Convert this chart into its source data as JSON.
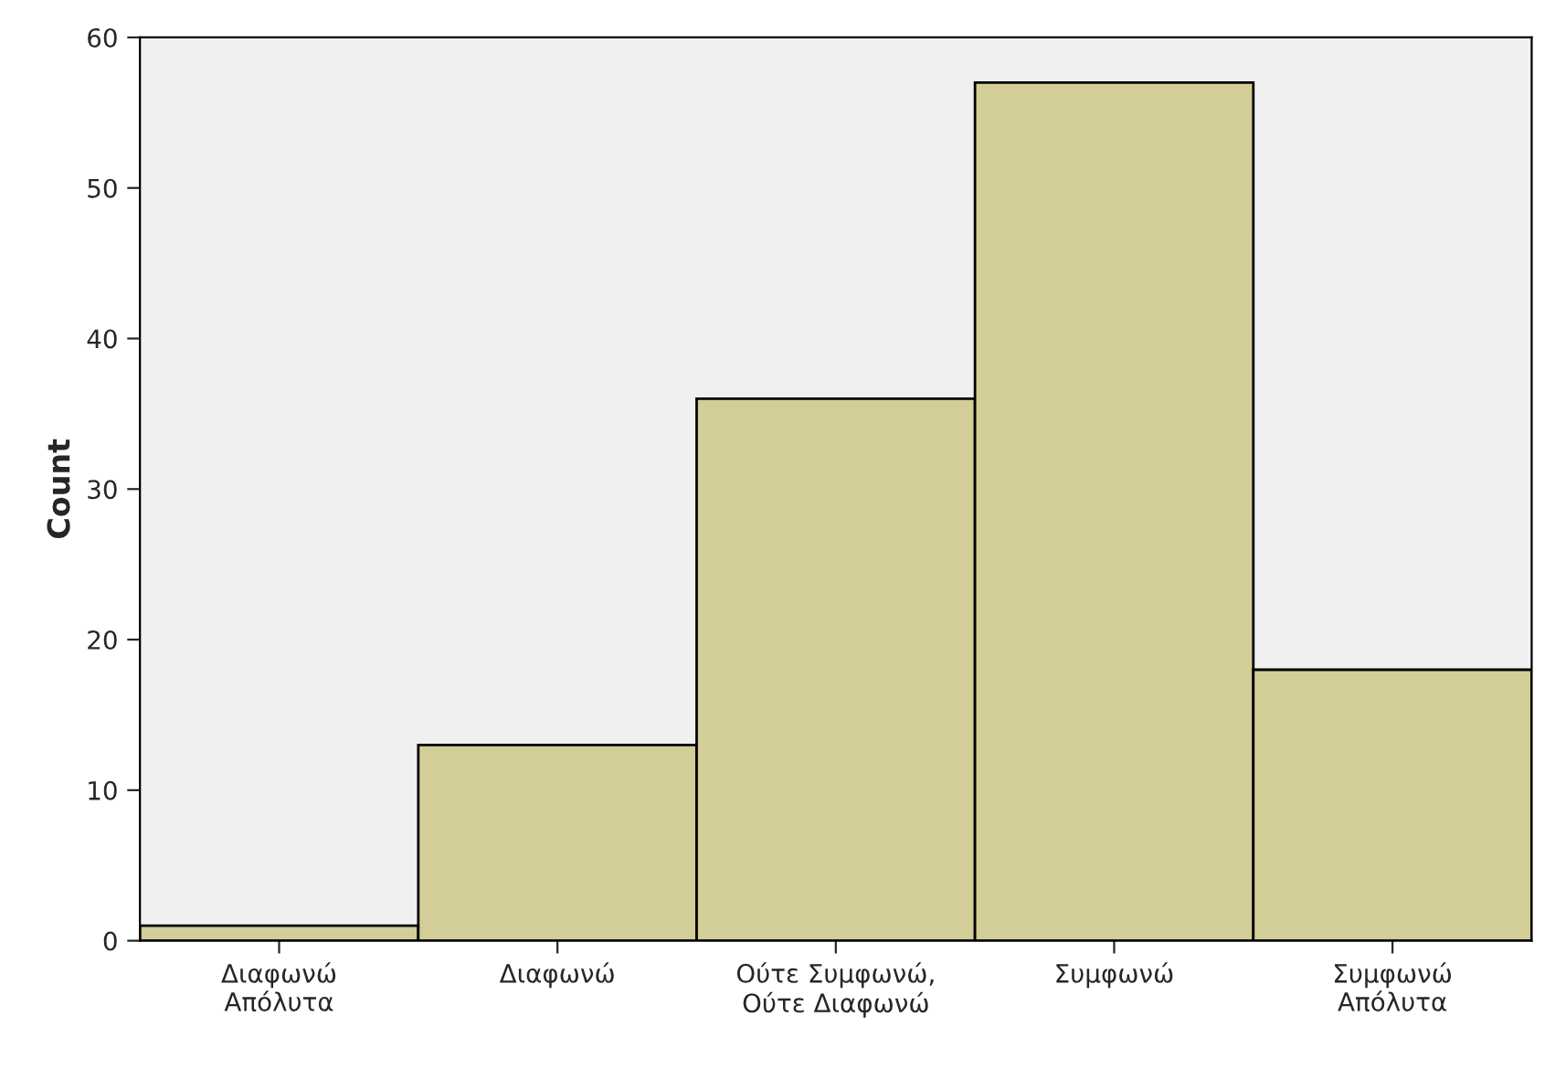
{
  "chart_data": {
    "type": "bar",
    "ylabel": "Count",
    "categories": [
      "Διαφωνώ\nΑπόλυτα",
      "Διαφωνώ",
      "Ούτε Συμφωνώ,\nΟύτε Διαφωνώ",
      "Συμφωνώ",
      "Συμφωνώ\nΑπόλυτα"
    ],
    "values": [
      1,
      13,
      36,
      57,
      18
    ],
    "color": "#d3cd98",
    "ylim": [
      0,
      60
    ],
    "yticks": [
      0,
      10,
      20,
      30,
      40,
      50,
      60
    ],
    "grid": false
  }
}
